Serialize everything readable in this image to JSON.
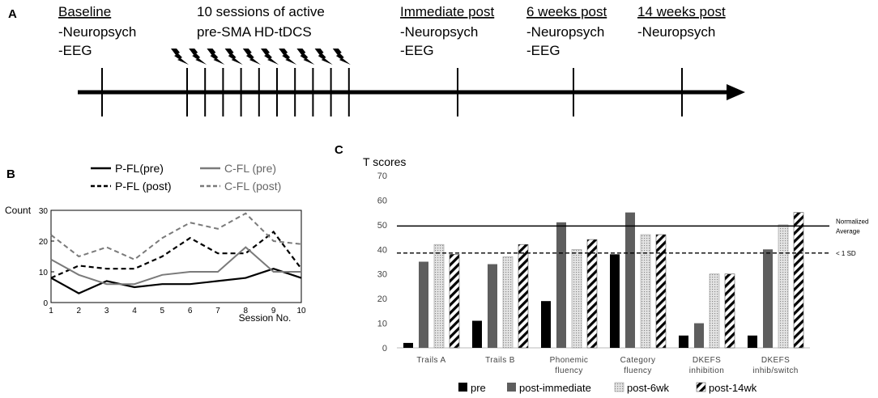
{
  "panel_a": {
    "label": "A",
    "timepoints": [
      {
        "title": "Baseline",
        "underline": true,
        "lines": [
          "-Neuropsych",
          "-EEG"
        ]
      },
      {
        "title": "10 sessions of active",
        "underline": false,
        "lines": [
          "pre-SMA HD-tDCS"
        ]
      },
      {
        "title": "Immediate post",
        "underline": true,
        "lines": [
          "-Neuropsych",
          "-EEG"
        ]
      },
      {
        "title": "6 weeks post",
        "underline": true,
        "lines": [
          "-Neuropsych",
          "-EEG"
        ]
      },
      {
        "title": "14 weeks post",
        "underline": true,
        "lines": [
          "-Neuropsych"
        ]
      }
    ],
    "stimulation_sessions": 10,
    "bolt_icon": "lightning-bolt-icon"
  },
  "chart_data": [
    {
      "panel": "B",
      "type": "line",
      "title": "",
      "xlabel": "Session No.",
      "ylabel": "Count",
      "x": [
        1,
        2,
        3,
        4,
        5,
        6,
        7,
        8,
        9,
        10
      ],
      "xlim": [
        1,
        10
      ],
      "ylim": [
        0,
        30
      ],
      "yticks": [
        0,
        10,
        20,
        30
      ],
      "series": [
        {
          "name": "P-FL(pre)",
          "color": "#000000",
          "dash": "solid",
          "values": [
            8,
            3,
            7,
            5,
            6,
            6,
            7,
            8,
            11,
            8
          ]
        },
        {
          "name": "P-FL (post)",
          "color": "#000000",
          "dash": "dashed",
          "values": [
            8,
            12,
            11,
            11,
            15,
            21,
            16,
            16,
            23,
            11
          ]
        },
        {
          "name": "C-FL (pre)",
          "color": "#7a7a7a",
          "dash": "solid",
          "values": [
            14,
            9,
            6,
            6,
            9,
            10,
            10,
            18,
            10,
            10
          ]
        },
        {
          "name": "C-FL (post)",
          "color": "#7a7a7a",
          "dash": "dashed",
          "values": [
            22,
            15,
            18,
            14,
            21,
            26,
            24,
            29,
            20,
            19
          ]
        }
      ]
    },
    {
      "panel": "C",
      "type": "bar",
      "title": "T scores",
      "xlabel": "",
      "ylabel": "T scores",
      "ylim": [
        0,
        70
      ],
      "yticks": [
        0,
        10,
        20,
        30,
        40,
        50,
        60,
        70
      ],
      "categories": [
        [
          "Trails A"
        ],
        [
          "Trails B"
        ],
        [
          "Phonemic",
          "fluency"
        ],
        [
          "Category",
          "fluency"
        ],
        [
          "DKEFS",
          "inhibition"
        ],
        [
          "DKEFS",
          "inhib/switch"
        ]
      ],
      "series": [
        {
          "name": "pre",
          "fill": "solid-black",
          "values": [
            2,
            11,
            19,
            38,
            5,
            5
          ]
        },
        {
          "name": "post-immediate",
          "fill": "solid-gray",
          "values": [
            35,
            34,
            51,
            55,
            10,
            40
          ]
        },
        {
          "name": "post-6wk",
          "fill": "dotted-light",
          "values": [
            42,
            37,
            40,
            46,
            30,
            50
          ]
        },
        {
          "name": "post-14wk",
          "fill": "diagonal-hatch",
          "values": [
            38,
            42,
            44,
            46,
            30,
            55
          ]
        }
      ],
      "reference_lines": [
        {
          "value": 49.5,
          "style": "solid",
          "label_lines": [
            "Normalized",
            "Average"
          ]
        },
        {
          "value": 38.5,
          "style": "dashed",
          "label_lines": [
            "< 1 SD"
          ]
        }
      ]
    }
  ],
  "labels": {
    "panel_b": "B",
    "panel_c": "C"
  }
}
